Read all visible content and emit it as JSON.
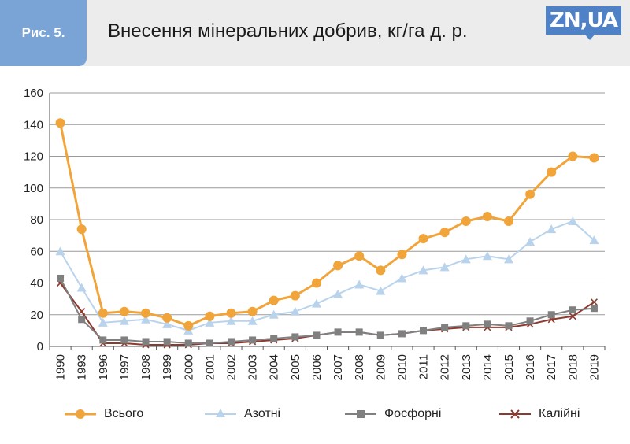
{
  "header": {
    "figure_label": "Рис. 5.",
    "title": "Внесення мінеральних добрив, кг/га д. р.",
    "logo_text": "ZN,UA"
  },
  "chart_data": {
    "type": "line",
    "title": "Внесення мінеральних добрив, кг/га д. р.",
    "categories": [
      "1990",
      "1993",
      "1996",
      "1997",
      "1998",
      "1999",
      "2000",
      "2001",
      "2002",
      "2003",
      "2004",
      "2005",
      "2006",
      "2007",
      "2008",
      "2009",
      "2010",
      "2011",
      "2012",
      "2013",
      "2014",
      "2015",
      "2016",
      "2017",
      "2018",
      "2019"
    ],
    "ylim": [
      0,
      160
    ],
    "yticks": [
      0,
      20,
      40,
      60,
      80,
      100,
      120,
      140,
      160
    ],
    "grid": true,
    "legend_position": "bottom",
    "series": [
      {
        "name": "Всього",
        "color": "#f0a43a",
        "marker": "circle",
        "values": [
          141,
          74,
          21,
          22,
          21,
          18,
          13,
          19,
          21,
          22,
          29,
          32,
          40,
          51,
          57,
          48,
          58,
          68,
          72,
          79,
          82,
          79,
          96,
          110,
          120,
          119
        ]
      },
      {
        "name": "Азотні",
        "color": "#b9d3ec",
        "marker": "triangle",
        "values": [
          60,
          37,
          15,
          16,
          17,
          14,
          10,
          15,
          16,
          16,
          20,
          22,
          27,
          33,
          39,
          35,
          43,
          48,
          50,
          55,
          57,
          55,
          66,
          74,
          79,
          67
        ]
      },
      {
        "name": "Фосфорні",
        "color": "#808080",
        "marker": "square",
        "values": [
          43,
          17,
          4,
          4,
          3,
          3,
          2,
          2,
          3,
          4,
          5,
          6,
          7,
          9,
          9,
          7,
          8,
          10,
          12,
          13,
          14,
          13,
          16,
          20,
          23,
          24
        ]
      },
      {
        "name": "Калійні",
        "color": "#8b3a30",
        "marker": "cross",
        "values": [
          40,
          22,
          2,
          2,
          1,
          1,
          1,
          2,
          2,
          3,
          4,
          5,
          7,
          9,
          9,
          7,
          8,
          10,
          11,
          12,
          12,
          12,
          14,
          17,
          19,
          28
        ]
      }
    ]
  }
}
